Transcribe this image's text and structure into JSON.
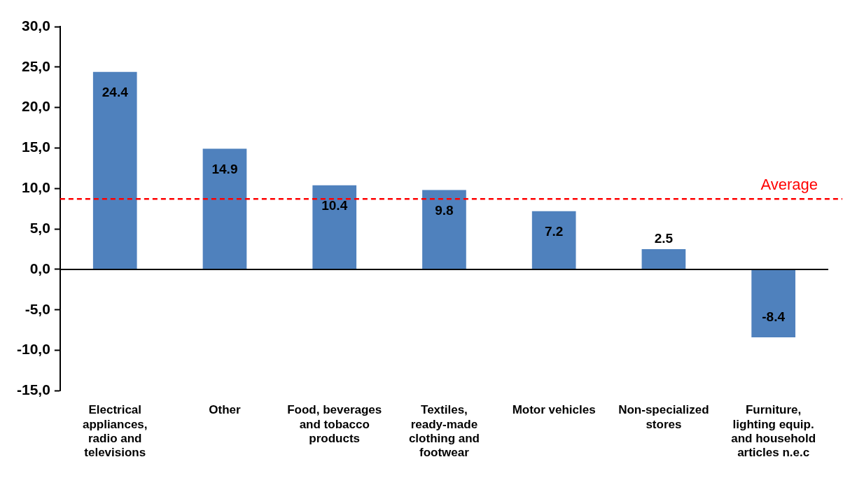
{
  "chart_data": {
    "type": "bar",
    "categories": [
      "Electrical appliances, radio and televisions",
      "Other",
      "Food, beverages and tobacco products",
      "Textiles, ready-made clothing and footwear",
      "Motor vehicles",
      "Non-specialized stores",
      "Furniture, lighting equip. and household articles n.e.c"
    ],
    "values": [
      24.4,
      14.9,
      10.4,
      9.8,
      7.2,
      2.5,
      -8.4
    ],
    "color": "#4f81bd",
    "ylim": [
      -15,
      30
    ],
    "yticks": [
      {
        "value": -15,
        "label": "-15,0"
      },
      {
        "value": -10,
        "label": "-10,0"
      },
      {
        "value": -5,
        "label": "-5,0"
      },
      {
        "value": 0,
        "label": "0,0"
      },
      {
        "value": 5,
        "label": "5,0"
      },
      {
        "value": 10,
        "label": "10,0"
      },
      {
        "value": 15,
        "label": "15,0"
      },
      {
        "value": 20,
        "label": "20,0"
      },
      {
        "value": 25,
        "label": "25,0"
      },
      {
        "value": 30,
        "label": "30,0"
      }
    ],
    "data_labels": true,
    "ref_lines": [
      {
        "axis": "y",
        "value": 8.7,
        "label": "Average",
        "color": "#ff0000",
        "line_style": "dashed"
      }
    ],
    "legend": false
  }
}
